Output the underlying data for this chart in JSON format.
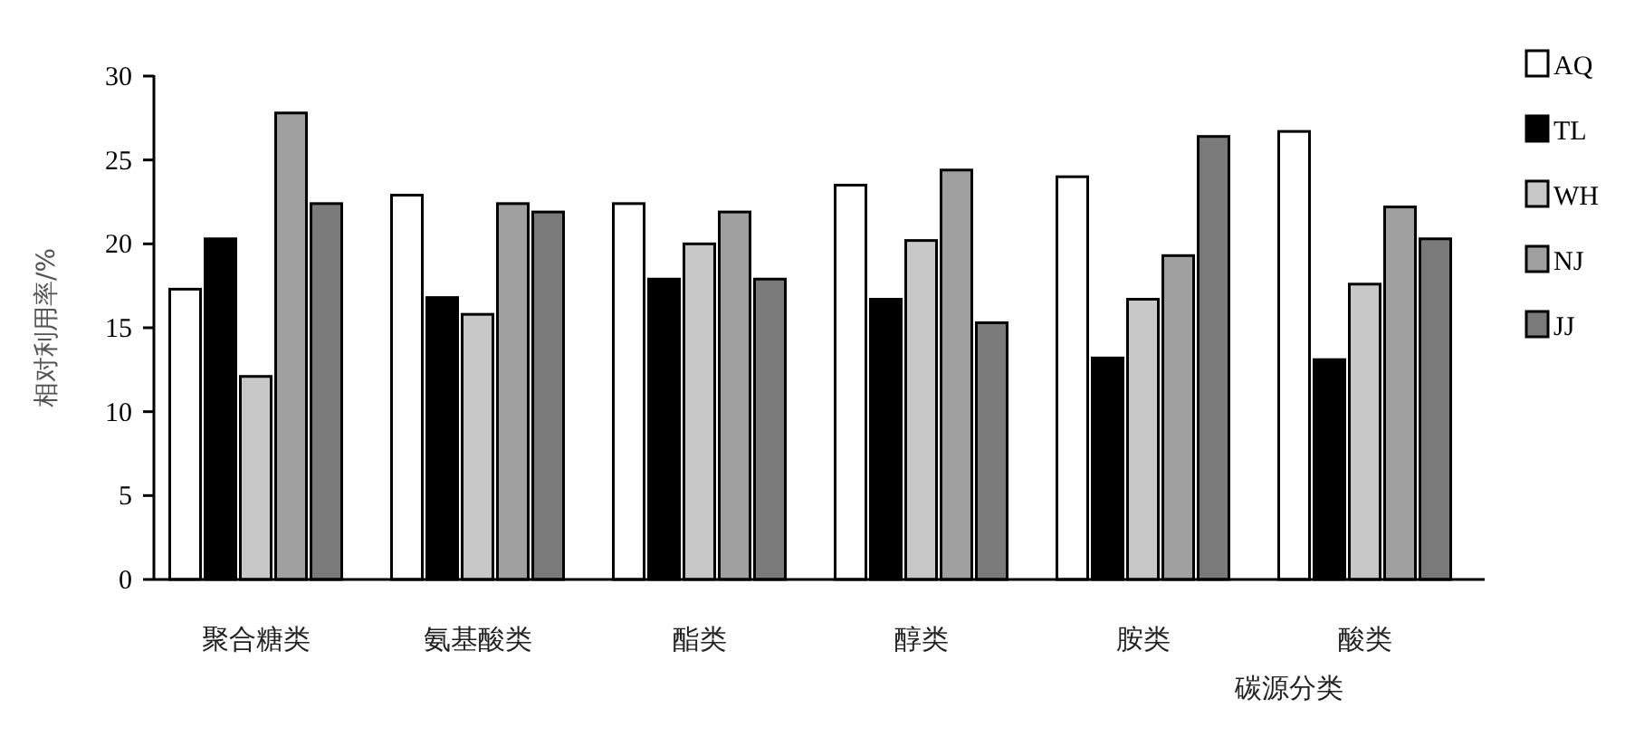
{
  "chart_data": {
    "type": "bar",
    "xlabel": "碳源分类",
    "ylabel": "相对利用率/%",
    "categories": [
      "聚合糖类",
      "氨基酸类",
      "酯类",
      "醇类",
      "胺类",
      "酸类"
    ],
    "series": [
      {
        "name": "AQ",
        "color": "#ffffff",
        "values": [
          17.3,
          22.9,
          22.4,
          23.5,
          24.0,
          26.7
        ]
      },
      {
        "name": "TL",
        "color": "#000000",
        "values": [
          20.3,
          16.8,
          17.9,
          16.7,
          13.2,
          13.1
        ]
      },
      {
        "name": "WH",
        "color": "#c8c8c8",
        "values": [
          12.1,
          15.8,
          20.0,
          20.2,
          16.7,
          17.6
        ]
      },
      {
        "name": "NJ",
        "color": "#a0a0a0",
        "values": [
          27.8,
          22.4,
          21.9,
          24.4,
          19.3,
          22.2
        ]
      },
      {
        "name": "JJ",
        "color": "#7a7a7a",
        "values": [
          22.4,
          21.9,
          17.9,
          15.3,
          26.4,
          20.3
        ]
      }
    ],
    "ylim": [
      0,
      30
    ],
    "yticks": [
      0,
      5,
      10,
      15,
      20,
      25,
      30
    ],
    "legend": "right",
    "grid": false
  }
}
